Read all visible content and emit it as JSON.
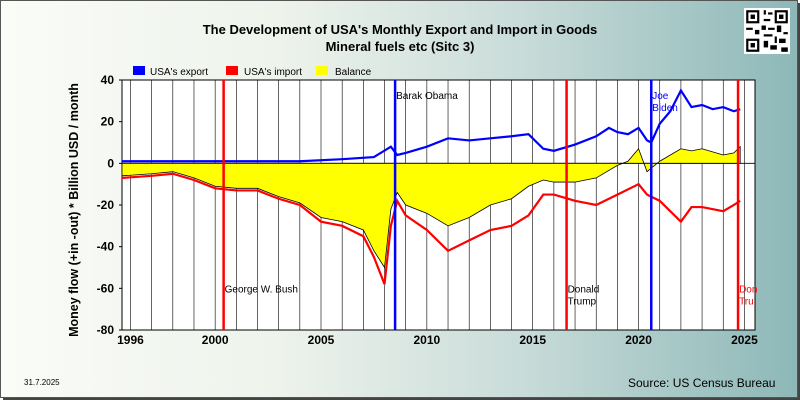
{
  "title_line1": "The Development of USA's Monthly Export and Import in Goods",
  "title_line2": "Mineral fuels etc (Sitc 3)",
  "date": "31.7.2025",
  "source": "Source: US Census Bureau",
  "chart_data": {
    "type": "line",
    "ylabel": "Money flow (+in -out) * Billion USD / month",
    "xlim": [
      1995.6,
      2025.5
    ],
    "ylim": [
      -80,
      40
    ],
    "y_ticks": [
      40,
      20,
      0,
      -20,
      -40,
      -60,
      -80
    ],
    "x_ticks": [
      1996,
      2000,
      2005,
      2010,
      2015,
      2020,
      2025
    ],
    "legend_position": "top-left",
    "grid": "vertical-year-lines",
    "colors": {
      "export": "#0000ff",
      "import": "#ff0000",
      "balance": "#ffff00"
    },
    "series": [
      {
        "name": "USA's export",
        "x": [
          1995.6,
          1998,
          2000,
          2002,
          2004,
          2006,
          2007.5,
          2008.3,
          2008.6,
          2009,
          2010,
          2011,
          2012,
          2013,
          2014,
          2014.8,
          2015.5,
          2016,
          2017,
          2018,
          2018.6,
          2019,
          2019.5,
          2020,
          2020.4,
          2020.6,
          2021,
          2021.5,
          2022,
          2022.5,
          2023,
          2023.5,
          2024,
          2024.5,
          2024.8
        ],
        "values": [
          1,
          1,
          1,
          1,
          1,
          2,
          3,
          8,
          4,
          5,
          8,
          12,
          11,
          12,
          13,
          14,
          7,
          6,
          9,
          13,
          17,
          15,
          14,
          17,
          11,
          10,
          19,
          25,
          35,
          27,
          28,
          26,
          27,
          25,
          26
        ]
      },
      {
        "name": "USA's import",
        "x": [
          1995.6,
          1997,
          1998,
          1999,
          2000,
          2001,
          2002,
          2003,
          2004,
          2005,
          2006,
          2007,
          2007.5,
          2008,
          2008.3,
          2008.6,
          2009,
          2010,
          2011,
          2012,
          2013,
          2014,
          2014.8,
          2015.5,
          2016,
          2017,
          2018,
          2019,
          2020,
          2020.4,
          2021,
          2022,
          2022.5,
          2023,
          2024,
          2024.5,
          2024.8
        ],
        "values": [
          -7,
          -6,
          -5,
          -8,
          -12,
          -13,
          -13,
          -17,
          -20,
          -28,
          -30,
          -35,
          -45,
          -58,
          -30,
          -18,
          -25,
          -32,
          -42,
          -37,
          -32,
          -30,
          -25,
          -15,
          -15,
          -18,
          -20,
          -15,
          -10,
          -15,
          -18,
          -28,
          -21,
          -21,
          -23,
          -20,
          -18
        ]
      },
      {
        "name": "Balance",
        "x": [
          1995.6,
          1997,
          1998,
          1999,
          2000,
          2001,
          2002,
          2003,
          2004,
          2005,
          2006,
          2007,
          2007.5,
          2008,
          2008.3,
          2008.6,
          2009,
          2010,
          2011,
          2012,
          2013,
          2014,
          2014.8,
          2015.5,
          2016,
          2017,
          2018,
          2019,
          2019.5,
          2020,
          2020.4,
          2021,
          2022,
          2022.5,
          2023,
          2024,
          2024.5,
          2024.8
        ],
        "values": [
          -6,
          -5,
          -4,
          -7,
          -11,
          -12,
          -12,
          -16,
          -19,
          -26,
          -28,
          -32,
          -42,
          -50,
          -22,
          -14,
          -20,
          -24,
          -30,
          -26,
          -20,
          -17,
          -11,
          -8,
          -9,
          -9,
          -7,
          -1,
          1,
          7,
          -4,
          1,
          7,
          6,
          7,
          4,
          5,
          8
        ]
      }
    ],
    "annotations": [
      {
        "x": 2000.4,
        "text": [
          "George W. Bush"
        ],
        "line_color": "#ff0000",
        "text_color": "#000000",
        "y": -62
      },
      {
        "x": 2008.5,
        "text": [
          "Barak Obama"
        ],
        "line_color": "#0000ff",
        "text_color": "#000000",
        "y": 31
      },
      {
        "x": 2016.6,
        "text": [
          "Donald",
          "Trump"
        ],
        "line_color": "#ff0000",
        "text_color": "#000000",
        "y": -62
      },
      {
        "x": 2020.6,
        "text": [
          "Joe",
          "Biden"
        ],
        "line_color": "#0000ff",
        "text_color": "#0000ff",
        "y": 31
      },
      {
        "x": 2024.7,
        "text": [
          "Don",
          "Tru"
        ],
        "line_color": "#ff0000",
        "text_color": "#ff0000",
        "y": -62
      }
    ]
  }
}
